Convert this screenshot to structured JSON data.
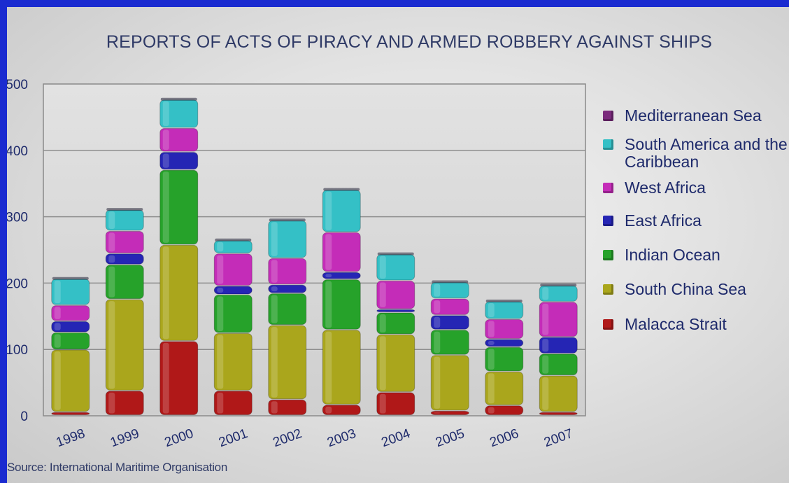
{
  "source": "Source: International Maritime Organisation",
  "chart_data": {
    "type": "bar",
    "stacked": true,
    "title": "REPORTS OF ACTS OF PIRACY AND ARMED ROBBERY AGAINST SHIPS",
    "xlabel": "",
    "ylabel": "",
    "categories": [
      "1998",
      "1999",
      "2000",
      "2001",
      "2002",
      "2003",
      "2004",
      "2005",
      "2006",
      "2007"
    ],
    "y_ticks": [
      "0",
      "100",
      "200",
      "300",
      "400",
      "500"
    ],
    "ylim": [
      0,
      500
    ],
    "grid": true,
    "legend_position": "right",
    "series": [
      {
        "name": "Malacca Strait",
        "color": "#b01818",
        "values": [
          5,
          37,
          112,
          37,
          24,
          16,
          35,
          7,
          15,
          5
        ]
      },
      {
        "name": "South China Sea",
        "color": "#aaa61c",
        "values": [
          94,
          138,
          145,
          87,
          112,
          113,
          87,
          84,
          51,
          55
        ]
      },
      {
        "name": "Indian Ocean",
        "color": "#26a22a",
        "values": [
          26,
          52,
          113,
          58,
          48,
          76,
          33,
          38,
          37,
          33
        ]
      },
      {
        "name": "East Africa",
        "color": "#2525b4",
        "values": [
          17,
          17,
          27,
          13,
          13,
          11,
          5,
          22,
          12,
          25
        ]
      },
      {
        "name": "West Africa",
        "color": "#c42cb8",
        "values": [
          24,
          34,
          36,
          49,
          40,
          60,
          43,
          25,
          30,
          53
        ]
      },
      {
        "name": "South America and the Caribbean",
        "color": "#34c0c6",
        "values": [
          40,
          32,
          43,
          20,
          57,
          64,
          40,
          25,
          27,
          25
        ]
      },
      {
        "name": "Mediterranean Sea",
        "color": "#7a2a7c",
        "values": [
          0,
          0,
          0,
          0,
          0,
          0,
          0,
          0,
          0,
          0
        ]
      }
    ],
    "legend_order": [
      "Mediterranean Sea",
      "South America and the Caribbean",
      "West Africa",
      "East Africa",
      "Indian Ocean",
      "South China Sea",
      "Malacca Strait"
    ]
  }
}
